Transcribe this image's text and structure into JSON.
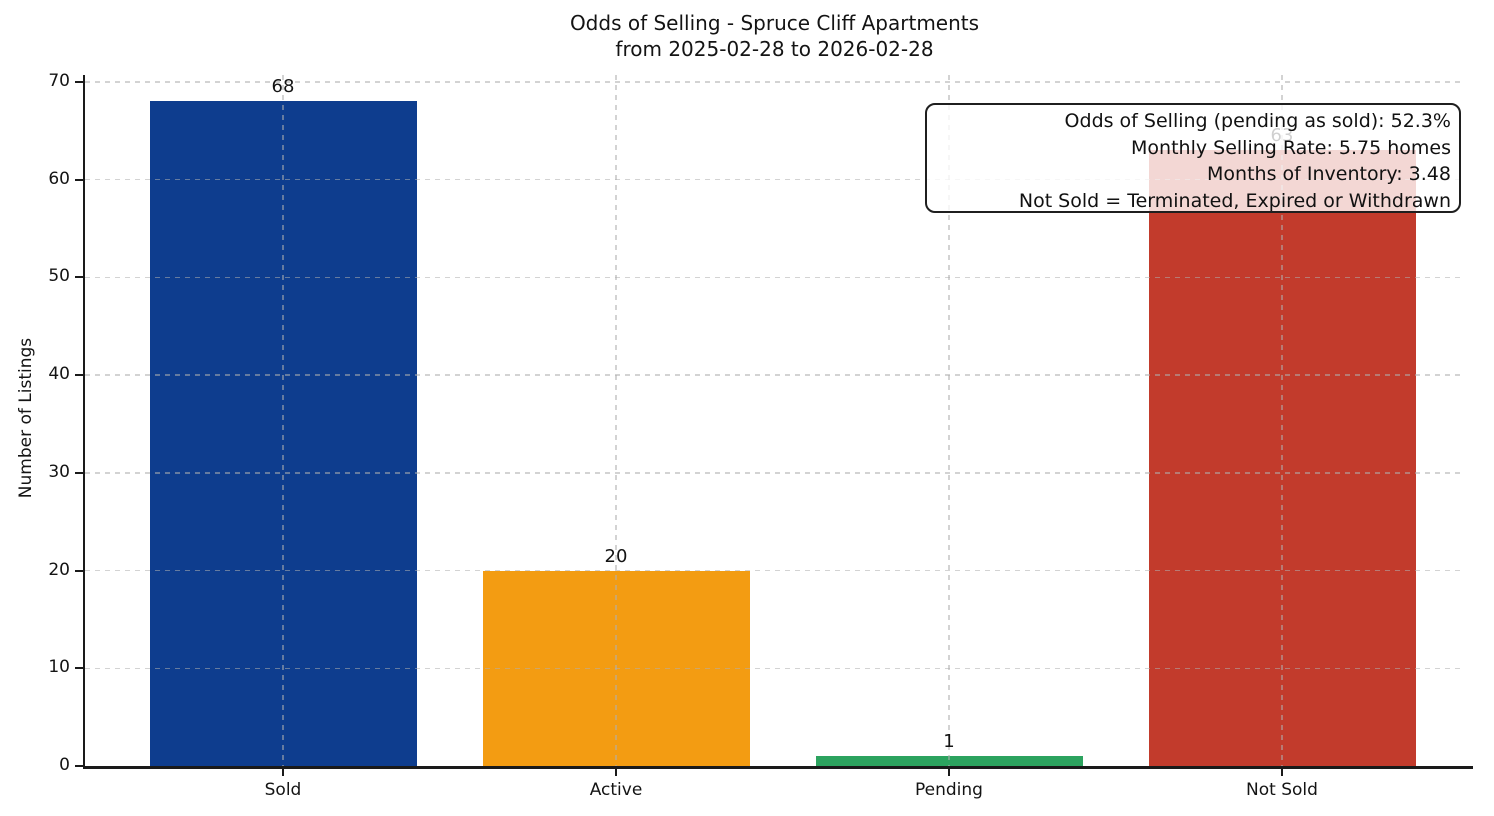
{
  "chart_data": {
    "type": "bar",
    "title": "Odds of Selling - Spruce Cliff Apartments",
    "subtitle": "from 2025-02-28 to 2026-02-28",
    "xlabel": "",
    "ylabel": "Number of Listings",
    "categories": [
      "Sold",
      "Active",
      "Pending",
      "Not Sold"
    ],
    "values": [
      68,
      20,
      1,
      63
    ],
    "bar_colors": [
      "#0e3d8e",
      "#f39c12",
      "#2ca35f",
      "#c23b2c"
    ],
    "yticks": [
      0,
      10,
      20,
      30,
      40,
      50,
      60,
      70
    ],
    "ylim": [
      0,
      70.7
    ],
    "grid": "dashed, both directions, light gray, drawn over bars",
    "legend_position": "none",
    "value_labels": "above each bar; Not Sold label partially hidden behind annotation box",
    "annotations": [
      "Odds of Selling (pending as sold): 52.3%",
      "Monthly Selling Rate: 5.75 homes",
      "Months of Inventory: 3.48",
      "Not Sold = Terminated, Expired or Withdrawn"
    ]
  }
}
